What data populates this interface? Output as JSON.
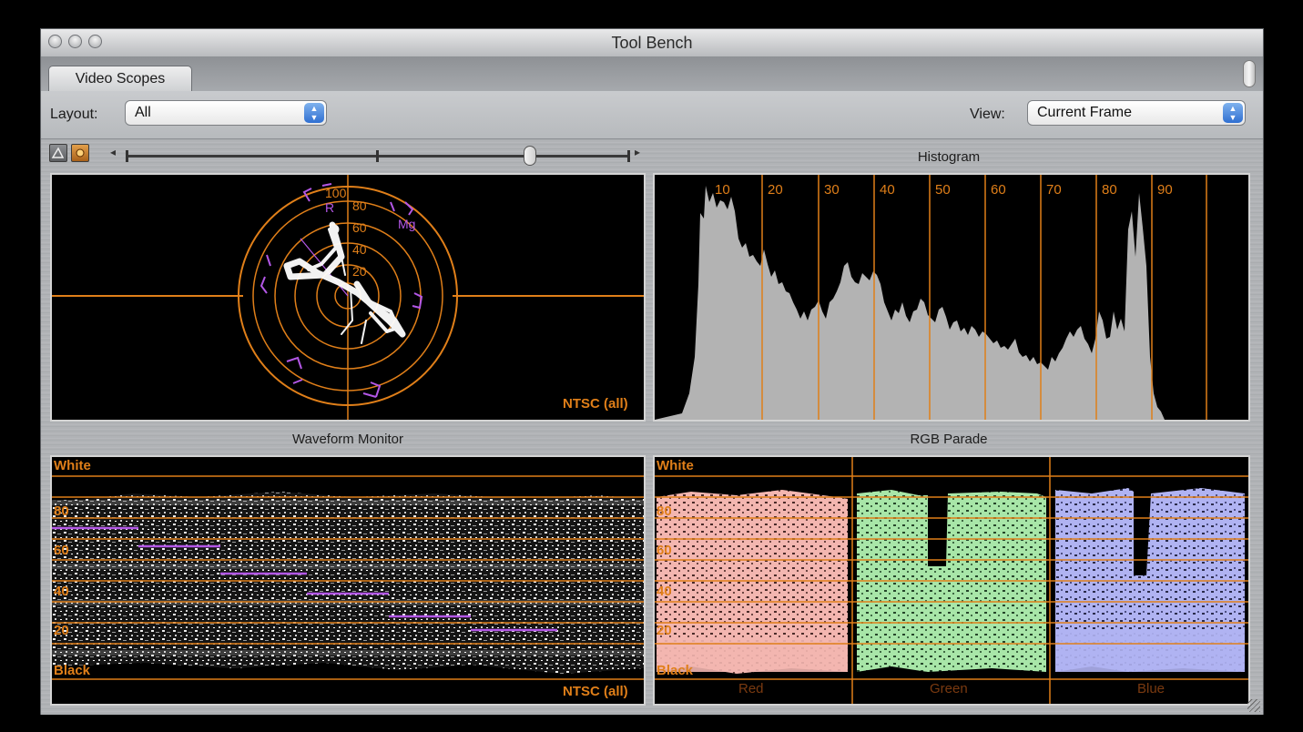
{
  "window": {
    "title": "Tool Bench"
  },
  "tabs": [
    {
      "label": "Video Scopes",
      "active": true
    }
  ],
  "controls": {
    "layout_label": "Layout:",
    "layout_value": "All",
    "view_label": "View:",
    "view_value": "Current Frame"
  },
  "toolbar": {
    "buttons": [
      {
        "icon": "vectorscope-graticule-icon"
      },
      {
        "icon": "brightness-icon"
      }
    ],
    "slider": {
      "name": "scope-brightness-slider",
      "value": 0.81
    }
  },
  "colors": {
    "graticule": "#e07f19",
    "vector_targets": "#b357e6",
    "trace": "#ffffff",
    "histogram": "#b3b3b3",
    "parade_red": "#f3b6b0",
    "parade_green": "#a8e6a8",
    "parade_blue": "#b0b3f2"
  },
  "vectorscope": {
    "title": "",
    "ring_labels": [
      "100",
      "80",
      "60",
      "40",
      "20"
    ],
    "target_labels": [
      "R",
      "Mg"
    ],
    "standard": "NTSC (all)"
  },
  "histogram": {
    "title": "Histogram",
    "axis_labels": [
      "10",
      "20",
      "30",
      "40",
      "50",
      "60",
      "70",
      "80",
      "90"
    ]
  },
  "waveform": {
    "title": "Waveform Monitor",
    "top_label": "White",
    "bottom_label": "Black",
    "levels": [
      "80",
      "60",
      "40",
      "20"
    ],
    "standard": "NTSC (all)"
  },
  "rgb_parade": {
    "title": "RGB Parade",
    "top_label": "White",
    "bottom_label": "Black",
    "levels": [
      "80",
      "60",
      "40",
      "20"
    ],
    "channels": [
      "Red",
      "Green",
      "Blue"
    ]
  }
}
